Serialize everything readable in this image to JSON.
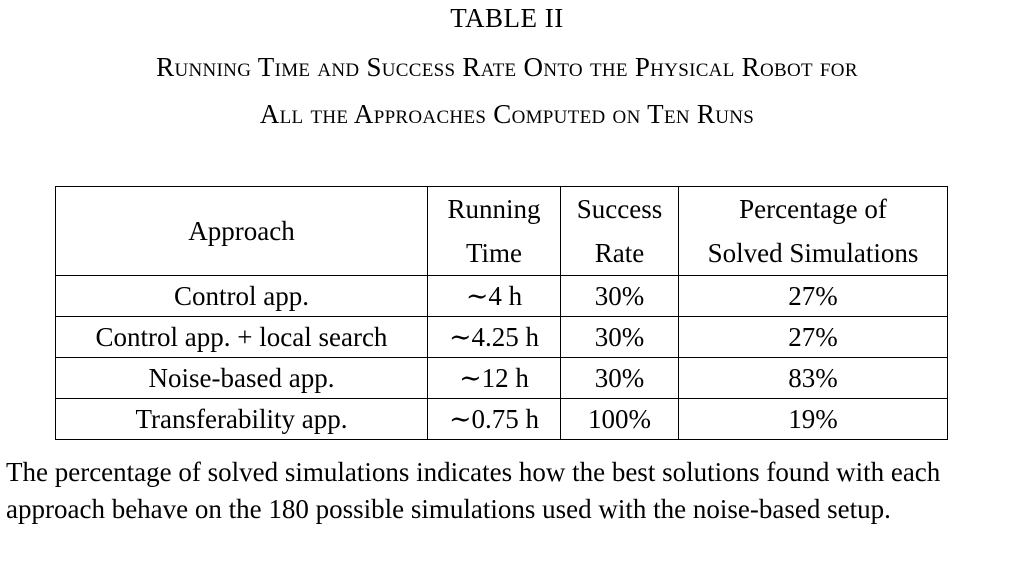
{
  "table_label": "TABLE II",
  "caption": {
    "line1": "Running Time and Success Rate Onto the Physical Robot for",
    "line2": "All the Approaches Computed on Ten Runs"
  },
  "table": {
    "headers": {
      "approach": "Approach",
      "running_time": [
        "Running",
        "Time"
      ],
      "success_rate": [
        "Success",
        "Rate"
      ],
      "percentage": [
        "Percentage of",
        "Solved Simulations"
      ]
    },
    "rows": [
      {
        "approach": "Control app.",
        "running_time": "∼4 h",
        "success_rate": "30%",
        "percentage": "27%"
      },
      {
        "approach": "Control app. + local search",
        "running_time": "∼4.25 h",
        "success_rate": "30%",
        "percentage": "27%"
      },
      {
        "approach": "Noise-based app.",
        "running_time": "∼12 h",
        "success_rate": "30%",
        "percentage": "83%"
      },
      {
        "approach": "Transferability app.",
        "running_time": "∼0.75 h",
        "success_rate": "100%",
        "percentage": "19%"
      }
    ]
  },
  "note": "The percentage of solved simulations indicates how the best solutions found with each approach behave on the 180 possible simulations used with the noise-based setup."
}
